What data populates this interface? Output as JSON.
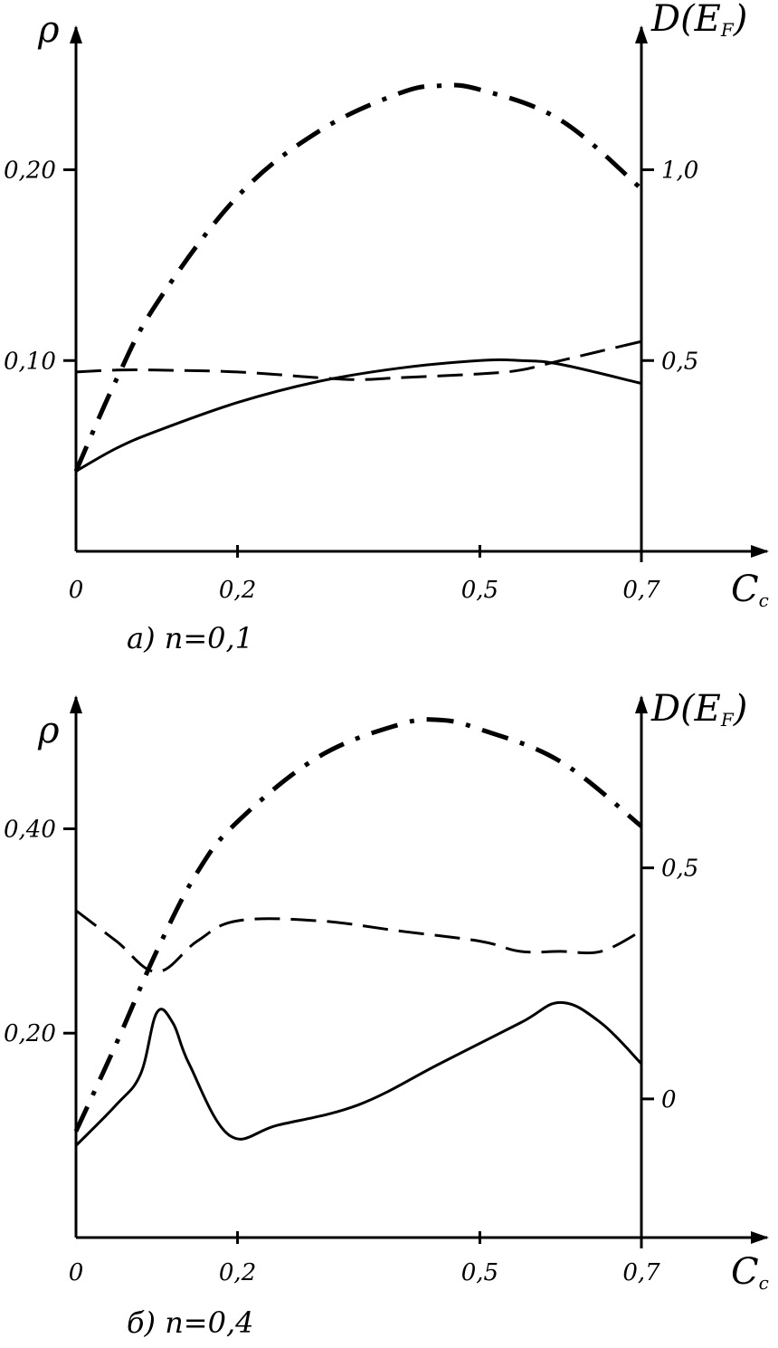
{
  "chart_data": [
    {
      "type": "line",
      "caption": "а) n=0,1",
      "xlabel": "C",
      "xlabel_sub": "c",
      "ylabel_left": "ρ",
      "ylabel_right": "D(E",
      "ylabel_right_sub": "F",
      "ylabel_right_close": ")",
      "x_ticks": [
        {
          "value": 0,
          "label": "0"
        },
        {
          "value": 0.2,
          "label": "0,2"
        },
        {
          "value": 0.5,
          "label": "0,5"
        },
        {
          "value": 0.7,
          "label": "0,7"
        }
      ],
      "y_left_ticks": [
        {
          "value": 0.1,
          "label": "0,10"
        },
        {
          "value": 0.2,
          "label": "0,20"
        }
      ],
      "y_right_ticks": [
        {
          "value": 0.5,
          "label": "0,5"
        },
        {
          "value": 1.0,
          "label": "1,0"
        }
      ],
      "xlim": [
        0,
        0.7
      ],
      "ylim_left": [
        0,
        0.27
      ],
      "ylim_right": [
        0,
        1.35
      ],
      "series": [
        {
          "style": "solid",
          "axis": "left",
          "x": [
            0,
            0.05,
            0.1,
            0.2,
            0.3,
            0.4,
            0.5,
            0.55,
            0.6,
            0.7
          ],
          "y": [
            0.042,
            0.054,
            0.063,
            0.078,
            0.089,
            0.096,
            0.1,
            0.1,
            0.098,
            0.088
          ]
        },
        {
          "style": "dashed",
          "axis": "left",
          "x": [
            0,
            0.05,
            0.1,
            0.2,
            0.3,
            0.35,
            0.4,
            0.5,
            0.55,
            0.6,
            0.7
          ],
          "y": [
            0.094,
            0.095,
            0.095,
            0.094,
            0.091,
            0.09,
            0.091,
            0.093,
            0.095,
            0.1,
            0.11
          ]
        },
        {
          "style": "dashdot",
          "axis": "right",
          "x": [
            0,
            0.05,
            0.1,
            0.2,
            0.3,
            0.4,
            0.45,
            0.5,
            0.6,
            0.7
          ],
          "y": [
            0.21,
            0.45,
            0.65,
            0.93,
            1.1,
            1.2,
            1.22,
            1.21,
            1.13,
            0.95
          ]
        }
      ]
    },
    {
      "type": "line",
      "caption": "б) n=0,4",
      "xlabel": "C",
      "xlabel_sub": "c",
      "ylabel_left": "ρ",
      "ylabel_right": "D(E",
      "ylabel_right_sub": "F",
      "ylabel_right_close": ")",
      "x_ticks": [
        {
          "value": 0,
          "label": "0"
        },
        {
          "value": 0.2,
          "label": "0,2"
        },
        {
          "value": 0.5,
          "label": "0,5"
        },
        {
          "value": 0.7,
          "label": "0,7"
        }
      ],
      "y_left_ticks": [
        {
          "value": 0.2,
          "label": "0,20"
        },
        {
          "value": 0.4,
          "label": "0,40"
        }
      ],
      "y_right_ticks": [
        {
          "value": 0,
          "label": "0"
        },
        {
          "value": 0.5,
          "label": "0,5"
        }
      ],
      "xlim": [
        0,
        0.7
      ],
      "ylim_left": [
        0,
        0.52
      ],
      "ylim_right": [
        -0.3,
        0.85
      ],
      "series": [
        {
          "style": "solid",
          "axis": "left",
          "x": [
            0,
            0.05,
            0.08,
            0.1,
            0.12,
            0.14,
            0.19,
            0.25,
            0.35,
            0.45,
            0.55,
            0.6,
            0.65,
            0.7
          ],
          "y": [
            0.09,
            0.13,
            0.16,
            0.22,
            0.21,
            0.17,
            0.1,
            0.11,
            0.13,
            0.17,
            0.21,
            0.23,
            0.21,
            0.17
          ]
        },
        {
          "style": "dashed",
          "axis": "left",
          "x": [
            0,
            0.05,
            0.1,
            0.15,
            0.2,
            0.3,
            0.4,
            0.5,
            0.55,
            0.6,
            0.65,
            0.7
          ],
          "y": [
            0.32,
            0.29,
            0.26,
            0.29,
            0.31,
            0.31,
            0.3,
            0.29,
            0.28,
            0.28,
            0.28,
            0.3
          ]
        },
        {
          "style": "dashdot",
          "axis": "right",
          "x": [
            0,
            0.05,
            0.1,
            0.15,
            0.2,
            0.3,
            0.4,
            0.45,
            0.5,
            0.6,
            0.7
          ],
          "y": [
            -0.07,
            0.12,
            0.32,
            0.49,
            0.6,
            0.74,
            0.81,
            0.82,
            0.8,
            0.73,
            0.59
          ]
        }
      ]
    }
  ]
}
